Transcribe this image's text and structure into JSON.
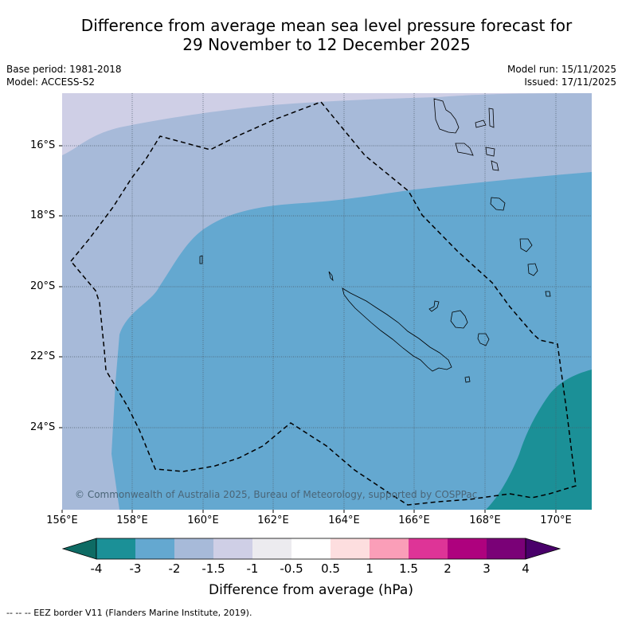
{
  "title": {
    "line1": "Difference from average mean sea level pressure forecast for",
    "line2": "29 November to 12 December 2025"
  },
  "meta": {
    "base_period": "Base period: 1981-2018",
    "model": "Model: ACCESS-S2",
    "model_run": "Model run: 15/11/2025",
    "issued": "Issued: 17/11/2025"
  },
  "latitude_labels": [
    "16°S",
    "18°S",
    "20°S",
    "22°S",
    "24°S"
  ],
  "longitude_labels": [
    "156°E",
    "158°E",
    "160°E",
    "162°E",
    "164°E",
    "166°E",
    "168°E",
    "170°E"
  ],
  "colorbar": {
    "ticks": [
      "-4",
      "-3",
      "-2",
      "-1.5",
      "-1",
      "-0.5",
      "0.5",
      "1",
      "1.5",
      "2",
      "3",
      "4"
    ],
    "colors": [
      "#1b9097",
      "#64a8d0",
      "#a7bad9",
      "#cfcfe6",
      "#ecebef",
      "#ffffff",
      "#fddedf",
      "#fa9eb8",
      "#de3497",
      "#ae017e",
      "#7a0177"
    ],
    "low_extend_color": "#0e6b64",
    "high_extend_color": "#49006a",
    "label": "Difference from average (hPa)"
  },
  "map_colors": {
    "band_lt_minus3": "#1b9097",
    "band_minus3_minus2": "#64a8d0",
    "band_minus2_minus1_5": "#a7bad9",
    "band_minus1_5_minus1": "#cfcfe6"
  },
  "copyright": "© Commonwealth of Australia 2025, Bureau of Meteorology, supported by COSPPac",
  "legend_note": "--  --  -- EEZ border V11 (Flanders Marine Institute, 2019)."
}
